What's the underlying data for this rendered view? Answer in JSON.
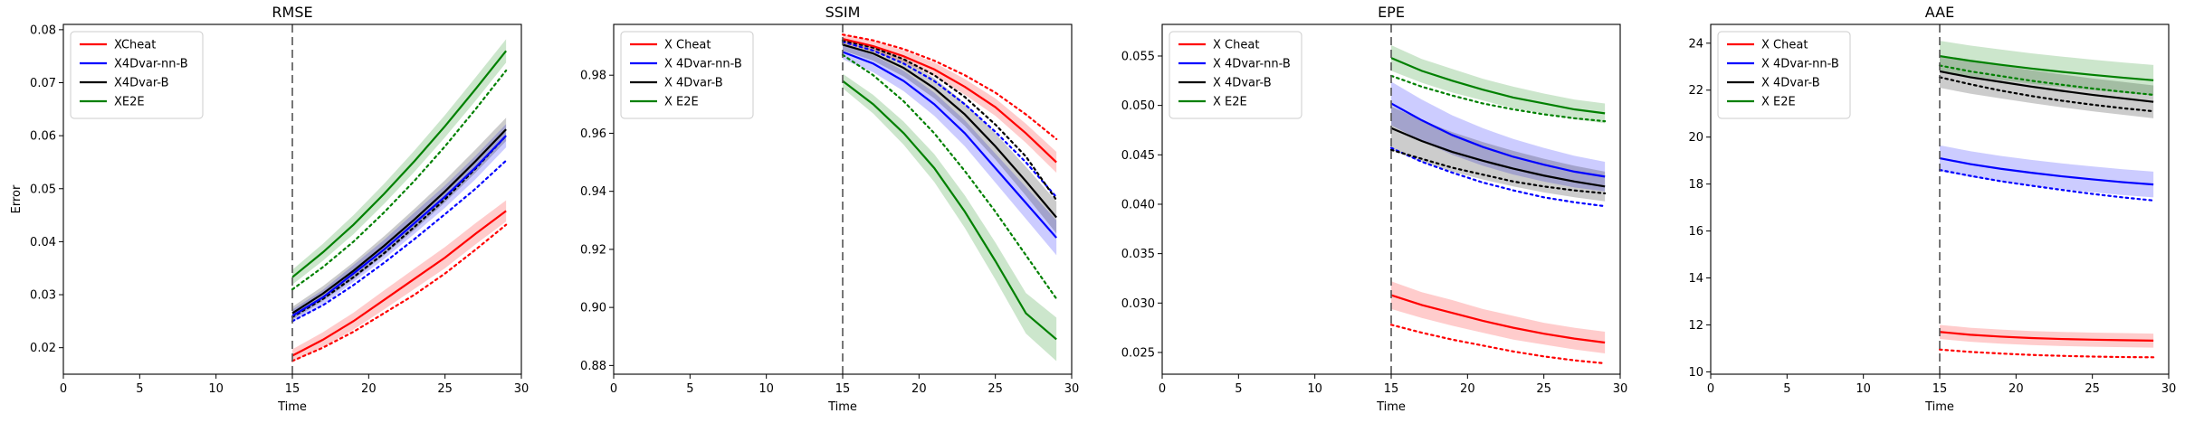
{
  "chart_data": [
    {
      "type": "line",
      "title": "RMSE",
      "xlabel": "Time",
      "ylabel": "Error",
      "xlim": [
        0,
        30
      ],
      "ylim": [
        0.015,
        0.081
      ],
      "xticks": [
        0,
        5,
        10,
        15,
        20,
        25,
        30
      ],
      "xtick_labels": [
        "0",
        "5",
        "10",
        "15",
        "20",
        "25",
        "30"
      ],
      "yticks": [
        0.02,
        0.03,
        0.04,
        0.05,
        0.06,
        0.07,
        0.08
      ],
      "ytick_labels": [
        "0.02",
        "0.03",
        "0.04",
        "0.05",
        "0.06",
        "0.07",
        "0.08"
      ],
      "vline_x": 15,
      "legend_position": "top-left",
      "x": [
        15,
        17,
        19,
        21,
        23,
        25,
        27,
        29
      ],
      "series": [
        {
          "name": "XCheat",
          "color": "#ff0000",
          "solid": [
            0.0185,
            0.0215,
            0.025,
            0.029,
            0.033,
            0.037,
            0.0415,
            0.0458
          ],
          "dotted": [
            0.0175,
            0.02,
            0.023,
            0.0265,
            0.03,
            0.034,
            0.0385,
            0.0432
          ],
          "band": [
            0.0012,
            0.0014,
            0.0016,
            0.0018,
            0.0019,
            0.002,
            0.002,
            0.002
          ]
        },
        {
          "name": "X4Dvar-nn-B",
          "color": "#0000ff",
          "solid": [
            0.026,
            0.0295,
            0.034,
            0.0385,
            0.0435,
            0.0485,
            0.054,
            0.06
          ],
          "dotted": [
            0.025,
            0.028,
            0.0318,
            0.036,
            0.0405,
            0.0452,
            0.05,
            0.0553
          ],
          "band": [
            0.0012,
            0.0014,
            0.0016,
            0.0018,
            0.002,
            0.0021,
            0.0022,
            0.0022
          ]
        },
        {
          "name": "X4Dvar-B",
          "color": "#000000",
          "solid": [
            0.0265,
            0.0302,
            0.0345,
            0.0392,
            0.0442,
            0.0495,
            0.0552,
            0.0612
          ],
          "dotted": [
            0.0258,
            0.0292,
            0.0333,
            0.0378,
            0.0428,
            0.048,
            0.0538,
            0.06
          ],
          "band": [
            0.0012,
            0.0014,
            0.0016,
            0.0018,
            0.002,
            0.0021,
            0.0022,
            0.0022
          ]
        },
        {
          "name": "XE2E",
          "color": "#008000",
          "solid": [
            0.0333,
            0.038,
            0.0432,
            0.049,
            0.0552,
            0.0618,
            0.0688,
            0.076
          ],
          "dotted": [
            0.031,
            0.0352,
            0.04,
            0.0455,
            0.0515,
            0.058,
            0.065,
            0.0723
          ],
          "band": [
            0.0014,
            0.0016,
            0.0018,
            0.0019,
            0.002,
            0.0021,
            0.0022,
            0.0022
          ]
        }
      ]
    },
    {
      "type": "line",
      "title": "SSIM",
      "xlabel": "Time",
      "ylabel": "",
      "xlim": [
        0,
        30
      ],
      "ylim": [
        0.877,
        0.9975
      ],
      "xticks": [
        0,
        5,
        10,
        15,
        20,
        25,
        30
      ],
      "xtick_labels": [
        "0",
        "5",
        "10",
        "15",
        "20",
        "25",
        "30"
      ],
      "yticks": [
        0.88,
        0.9,
        0.92,
        0.94,
        0.96,
        0.98
      ],
      "ytick_labels": [
        "0.88",
        "0.90",
        "0.92",
        "0.94",
        "0.96",
        "0.98"
      ],
      "vline_x": 15,
      "legend_position": "top-left",
      "x": [
        15,
        17,
        19,
        21,
        23,
        25,
        27,
        29
      ],
      "series": [
        {
          "name": "X Cheat",
          "color": "#ff0000",
          "solid": [
            0.9925,
            0.99,
            0.9865,
            0.982,
            0.976,
            0.969,
            0.96,
            0.95
          ],
          "dotted": [
            0.994,
            0.992,
            0.989,
            0.985,
            0.98,
            0.974,
            0.9665,
            0.958
          ],
          "band": [
            0.0015,
            0.0018,
            0.0021,
            0.0024,
            0.0027,
            0.003,
            0.0033,
            0.0036
          ]
        },
        {
          "name": "X 4Dvar-nn-B",
          "color": "#0000ff",
          "solid": [
            0.988,
            0.984,
            0.978,
            0.97,
            0.96,
            0.948,
            0.936,
            0.924
          ],
          "dotted": [
            0.9915,
            0.9885,
            0.984,
            0.978,
            0.97,
            0.9605,
            0.95,
            0.938
          ],
          "band": [
            0.0025,
            0.003,
            0.0035,
            0.004,
            0.0045,
            0.005,
            0.0055,
            0.006
          ]
        },
        {
          "name": "X 4Dvar-B",
          "color": "#000000",
          "solid": [
            0.9905,
            0.9875,
            0.9825,
            0.9755,
            0.9665,
            0.9555,
            0.9435,
            0.931
          ],
          "dotted": [
            0.992,
            0.9895,
            0.9855,
            0.98,
            0.9725,
            0.963,
            0.952,
            0.937
          ],
          "band": [
            0.002,
            0.0025,
            0.003,
            0.0035,
            0.004,
            0.0045,
            0.005,
            0.0055
          ]
        },
        {
          "name": "X E2E",
          "color": "#008000",
          "solid": [
            0.978,
            0.97,
            0.96,
            0.948,
            0.933,
            0.916,
            0.898,
            0.889
          ],
          "dotted": [
            0.987,
            0.98,
            0.971,
            0.96,
            0.947,
            0.933,
            0.918,
            0.903
          ],
          "band": [
            0.0025,
            0.0032,
            0.004,
            0.0048,
            0.0056,
            0.0064,
            0.007,
            0.0075
          ]
        }
      ]
    },
    {
      "type": "line",
      "title": "EPE",
      "xlabel": "Time",
      "ylabel": "",
      "xlim": [
        0,
        30
      ],
      "ylim": [
        0.0228,
        0.0582
      ],
      "xticks": [
        0,
        5,
        10,
        15,
        20,
        25,
        30
      ],
      "xtick_labels": [
        "0",
        "5",
        "10",
        "15",
        "20",
        "25",
        "30"
      ],
      "yticks": [
        0.025,
        0.03,
        0.035,
        0.04,
        0.045,
        0.05,
        0.055
      ],
      "ytick_labels": [
        "0.025",
        "0.030",
        "0.035",
        "0.040",
        "0.045",
        "0.050",
        "0.055"
      ],
      "vline_x": 15,
      "legend_position": "top-left",
      "x": [
        15,
        17,
        19,
        21,
        23,
        25,
        27,
        29
      ],
      "series": [
        {
          "name": "X Cheat",
          "color": "#ff0000",
          "solid": [
            0.0308,
            0.0298,
            0.029,
            0.0282,
            0.0275,
            0.0269,
            0.0264,
            0.026
          ],
          "dotted": [
            0.0278,
            0.027,
            0.0263,
            0.0257,
            0.0251,
            0.0246,
            0.0242,
            0.0239
          ],
          "band": [
            0.0014,
            0.0013,
            0.0013,
            0.0012,
            0.0012,
            0.0011,
            0.0011,
            0.0011
          ]
        },
        {
          "name": "X 4Dvar-nn-B",
          "color": "#0000ff",
          "solid": [
            0.0502,
            0.0485,
            0.047,
            0.0458,
            0.0448,
            0.044,
            0.0433,
            0.0428
          ],
          "dotted": [
            0.0457,
            0.0443,
            0.0432,
            0.0422,
            0.0414,
            0.0407,
            0.0402,
            0.0398
          ],
          "band": [
            0.0022,
            0.0021,
            0.002,
            0.0019,
            0.0018,
            0.0017,
            0.0016,
            0.0015
          ]
        },
        {
          "name": "X 4Dvar-B",
          "color": "#000000",
          "solid": [
            0.0477,
            0.0464,
            0.0453,
            0.0444,
            0.0436,
            0.0429,
            0.0423,
            0.0418
          ],
          "dotted": [
            0.0455,
            0.0446,
            0.0437,
            0.043,
            0.0423,
            0.0418,
            0.0414,
            0.0411
          ],
          "band": [
            0.0022,
            0.0021,
            0.002,
            0.0019,
            0.0018,
            0.0017,
            0.0016,
            0.0015
          ]
        },
        {
          "name": "X E2E",
          "color": "#008000",
          "solid": [
            0.0548,
            0.0535,
            0.0525,
            0.0516,
            0.0508,
            0.0502,
            0.0496,
            0.0492
          ],
          "dotted": [
            0.053,
            0.0519,
            0.051,
            0.0502,
            0.0496,
            0.0491,
            0.0487,
            0.0484
          ],
          "band": [
            0.0013,
            0.0012,
            0.0012,
            0.0011,
            0.0011,
            0.001,
            0.001,
            0.001
          ]
        }
      ]
    },
    {
      "type": "line",
      "title": "AAE",
      "xlabel": "Time",
      "ylabel": "",
      "xlim": [
        0,
        30
      ],
      "ylim": [
        9.9,
        24.8
      ],
      "xticks": [
        0,
        5,
        10,
        15,
        20,
        25,
        30
      ],
      "xtick_labels": [
        "0",
        "5",
        "10",
        "15",
        "20",
        "25",
        "30"
      ],
      "yticks": [
        10,
        12,
        14,
        16,
        18,
        20,
        22,
        24
      ],
      "ytick_labels": [
        "10",
        "12",
        "14",
        "16",
        "18",
        "20",
        "22",
        "24"
      ],
      "vline_x": 15,
      "legend_position": "top-left",
      "x": [
        15,
        17,
        19,
        21,
        23,
        25,
        27,
        29
      ],
      "series": [
        {
          "name": "X Cheat",
          "color": "#ff0000",
          "solid": [
            11.7,
            11.58,
            11.5,
            11.44,
            11.4,
            11.37,
            11.35,
            11.33
          ],
          "dotted": [
            10.95,
            10.85,
            10.78,
            10.72,
            10.68,
            10.65,
            10.63,
            10.62
          ],
          "band": [
            0.3,
            0.3,
            0.3,
            0.3,
            0.3,
            0.3,
            0.3,
            0.3
          ]
        },
        {
          "name": "X 4Dvar-nn-B",
          "color": "#0000ff",
          "solid": [
            19.1,
            18.85,
            18.65,
            18.48,
            18.33,
            18.2,
            18.08,
            17.98
          ],
          "dotted": [
            18.6,
            18.35,
            18.12,
            17.93,
            17.75,
            17.58,
            17.43,
            17.3
          ],
          "band": [
            0.55,
            0.55,
            0.55,
            0.55,
            0.55,
            0.55,
            0.55,
            0.55
          ]
        },
        {
          "name": "X 4Dvar-B",
          "color": "#000000",
          "solid": [
            22.8,
            22.55,
            22.35,
            22.15,
            21.97,
            21.8,
            21.65,
            21.5
          ],
          "dotted": [
            22.55,
            22.25,
            21.98,
            21.75,
            21.55,
            21.38,
            21.23,
            21.1
          ],
          "band": [
            0.7,
            0.7,
            0.7,
            0.7,
            0.7,
            0.7,
            0.7,
            0.7
          ]
        },
        {
          "name": "X E2E",
          "color": "#008000",
          "solid": [
            23.45,
            23.25,
            23.08,
            22.92,
            22.78,
            22.65,
            22.53,
            22.42
          ],
          "dotted": [
            23.05,
            22.8,
            22.6,
            22.4,
            22.23,
            22.07,
            21.93,
            21.8
          ],
          "band": [
            0.65,
            0.65,
            0.65,
            0.65,
            0.65,
            0.65,
            0.65,
            0.65
          ]
        }
      ]
    }
  ]
}
